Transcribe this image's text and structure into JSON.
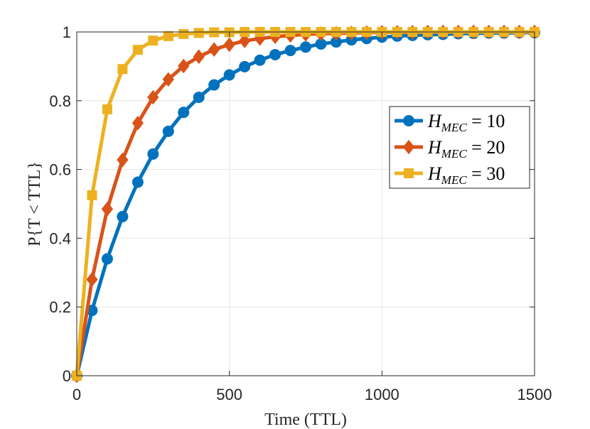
{
  "chart_data": {
    "type": "line",
    "title": "",
    "xlabel": "Time (TTL)",
    "ylabel": "P{T < TTL}",
    "xlim": [
      0,
      1500
    ],
    "ylim": [
      0,
      1
    ],
    "xticks": [
      0,
      500,
      1000,
      1500
    ],
    "yticks": [
      0,
      0.2,
      0.4,
      0.6,
      0.8,
      1
    ],
    "xtick_labels": [
      "0",
      "500",
      "1000",
      "1500"
    ],
    "ytick_labels": [
      "0",
      "0.2",
      "0.4",
      "0.6",
      "0.8",
      "1"
    ],
    "grid": true,
    "legend_position": "center-right",
    "x": [
      0,
      50,
      100,
      150,
      200,
      250,
      300,
      350,
      400,
      450,
      500,
      550,
      600,
      650,
      700,
      750,
      800,
      850,
      900,
      950,
      1000,
      1050,
      1100,
      1150,
      1200,
      1250,
      1300,
      1350,
      1400,
      1450,
      1500
    ],
    "series": [
      {
        "legend_var": "H",
        "legend_sub": "MEC",
        "legend_rest": " = 10",
        "color": "#0072BD",
        "marker": "circle",
        "values": [
          0,
          0.19,
          0.34,
          0.463,
          0.563,
          0.645,
          0.711,
          0.766,
          0.81,
          0.846,
          0.875,
          0.899,
          0.918,
          0.934,
          0.946,
          0.956,
          0.965,
          0.971,
          0.977,
          0.981,
          0.985,
          0.988,
          0.99,
          0.992,
          0.993,
          0.995,
          0.996,
          0.997,
          0.997,
          0.998,
          0.998
        ]
      },
      {
        "legend_var": "H",
        "legend_sub": "MEC",
        "legend_rest": " = 20",
        "color": "#D95319",
        "marker": "diamond",
        "values": [
          0,
          0.28,
          0.485,
          0.628,
          0.735,
          0.81,
          0.862,
          0.901,
          0.928,
          0.949,
          0.963,
          0.974,
          0.981,
          0.986,
          0.99,
          0.993,
          0.995,
          0.996,
          0.997,
          0.998,
          0.999,
          0.999,
          0.999,
          1,
          1,
          1,
          1,
          1,
          1,
          1,
          1
        ]
      },
      {
        "legend_var": "H",
        "legend_sub": "MEC",
        "legend_rest": " = 30",
        "color": "#EDB120",
        "marker": "square",
        "values": [
          0,
          0.525,
          0.775,
          0.892,
          0.948,
          0.975,
          0.988,
          0.994,
          0.997,
          0.999,
          0.999,
          1,
          1,
          1,
          1,
          1,
          1,
          1,
          1,
          1,
          1,
          1,
          1,
          1,
          1,
          1,
          1,
          1,
          1,
          1,
          1
        ]
      }
    ]
  }
}
